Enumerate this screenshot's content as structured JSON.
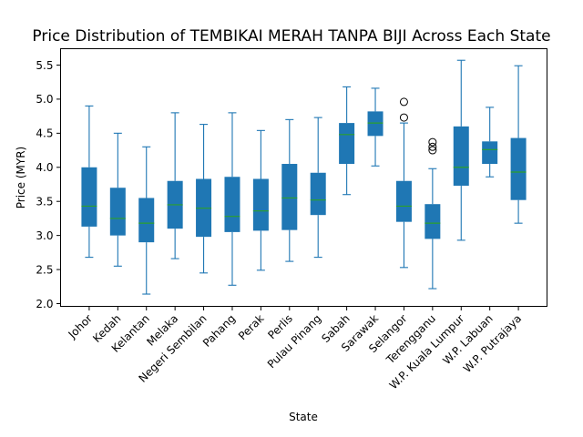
{
  "chart_data": {
    "type": "boxplot",
    "title": "Price Distribution of TEMBIKAI MERAH TANPA BIJI Across Each State",
    "xlabel": "State",
    "ylabel": "Price (MYR)",
    "ylim": [
      1.96,
      5.74
    ],
    "yticks": [
      "2.0",
      "2.5",
      "3.0",
      "3.5",
      "4.0",
      "4.5",
      "5.0",
      "5.5"
    ],
    "grid": false,
    "box_color": "#1f77b4",
    "median_color": "#2ca02c",
    "categories": [
      "Johor",
      "Kedah",
      "Kelantan",
      "Melaka",
      "Negeri Sembilan",
      "Pahang",
      "Perak",
      "Perlis",
      "Pulau Pinang",
      "Sabah",
      "Sarawak",
      "Selangor",
      "Terengganu",
      "W.P. Kuala Lumpur",
      "W.P. Labuan",
      "W.P. Putrajaya"
    ],
    "boxes": [
      {
        "whislo": 2.68,
        "q1": 3.13,
        "med": 3.43,
        "q3": 4.0,
        "whishi": 4.9,
        "fliers": []
      },
      {
        "whislo": 2.55,
        "q1": 3.0,
        "med": 3.25,
        "q3": 3.7,
        "whishi": 4.5,
        "fliers": []
      },
      {
        "whislo": 2.14,
        "q1": 2.9,
        "med": 3.18,
        "q3": 3.55,
        "whishi": 4.3,
        "fliers": []
      },
      {
        "whislo": 2.66,
        "q1": 3.1,
        "med": 3.45,
        "q3": 3.8,
        "whishi": 4.8,
        "fliers": []
      },
      {
        "whislo": 2.45,
        "q1": 2.98,
        "med": 3.4,
        "q3": 3.83,
        "whishi": 4.63,
        "fliers": []
      },
      {
        "whislo": 2.27,
        "q1": 3.05,
        "med": 3.28,
        "q3": 3.86,
        "whishi": 4.8,
        "fliers": []
      },
      {
        "whislo": 2.49,
        "q1": 3.07,
        "med": 3.36,
        "q3": 3.83,
        "whishi": 4.54,
        "fliers": []
      },
      {
        "whislo": 2.62,
        "q1": 3.08,
        "med": 3.55,
        "q3": 4.05,
        "whishi": 4.7,
        "fliers": []
      },
      {
        "whislo": 2.68,
        "q1": 3.3,
        "med": 3.52,
        "q3": 3.92,
        "whishi": 4.73,
        "fliers": []
      },
      {
        "whislo": 3.6,
        "q1": 4.05,
        "med": 4.48,
        "q3": 4.65,
        "whishi": 5.18,
        "fliers": []
      },
      {
        "whislo": 4.02,
        "q1": 4.46,
        "med": 4.65,
        "q3": 4.82,
        "whishi": 5.16,
        "fliers": []
      },
      {
        "whislo": 2.53,
        "q1": 3.2,
        "med": 3.43,
        "q3": 3.8,
        "whishi": 4.65,
        "fliers": [
          4.73,
          4.96
        ]
      },
      {
        "whislo": 2.22,
        "q1": 2.95,
        "med": 3.18,
        "q3": 3.46,
        "whishi": 3.98,
        "fliers": [
          4.25,
          4.3,
          4.37
        ]
      },
      {
        "whislo": 2.93,
        "q1": 3.73,
        "med": 4.0,
        "q3": 4.6,
        "whishi": 5.57,
        "fliers": []
      },
      {
        "whislo": 3.86,
        "q1": 4.05,
        "med": 4.26,
        "q3": 4.38,
        "whishi": 4.88,
        "fliers": []
      },
      {
        "whislo": 3.18,
        "q1": 3.52,
        "med": 3.93,
        "q3": 4.43,
        "whishi": 5.49,
        "fliers": []
      }
    ]
  }
}
